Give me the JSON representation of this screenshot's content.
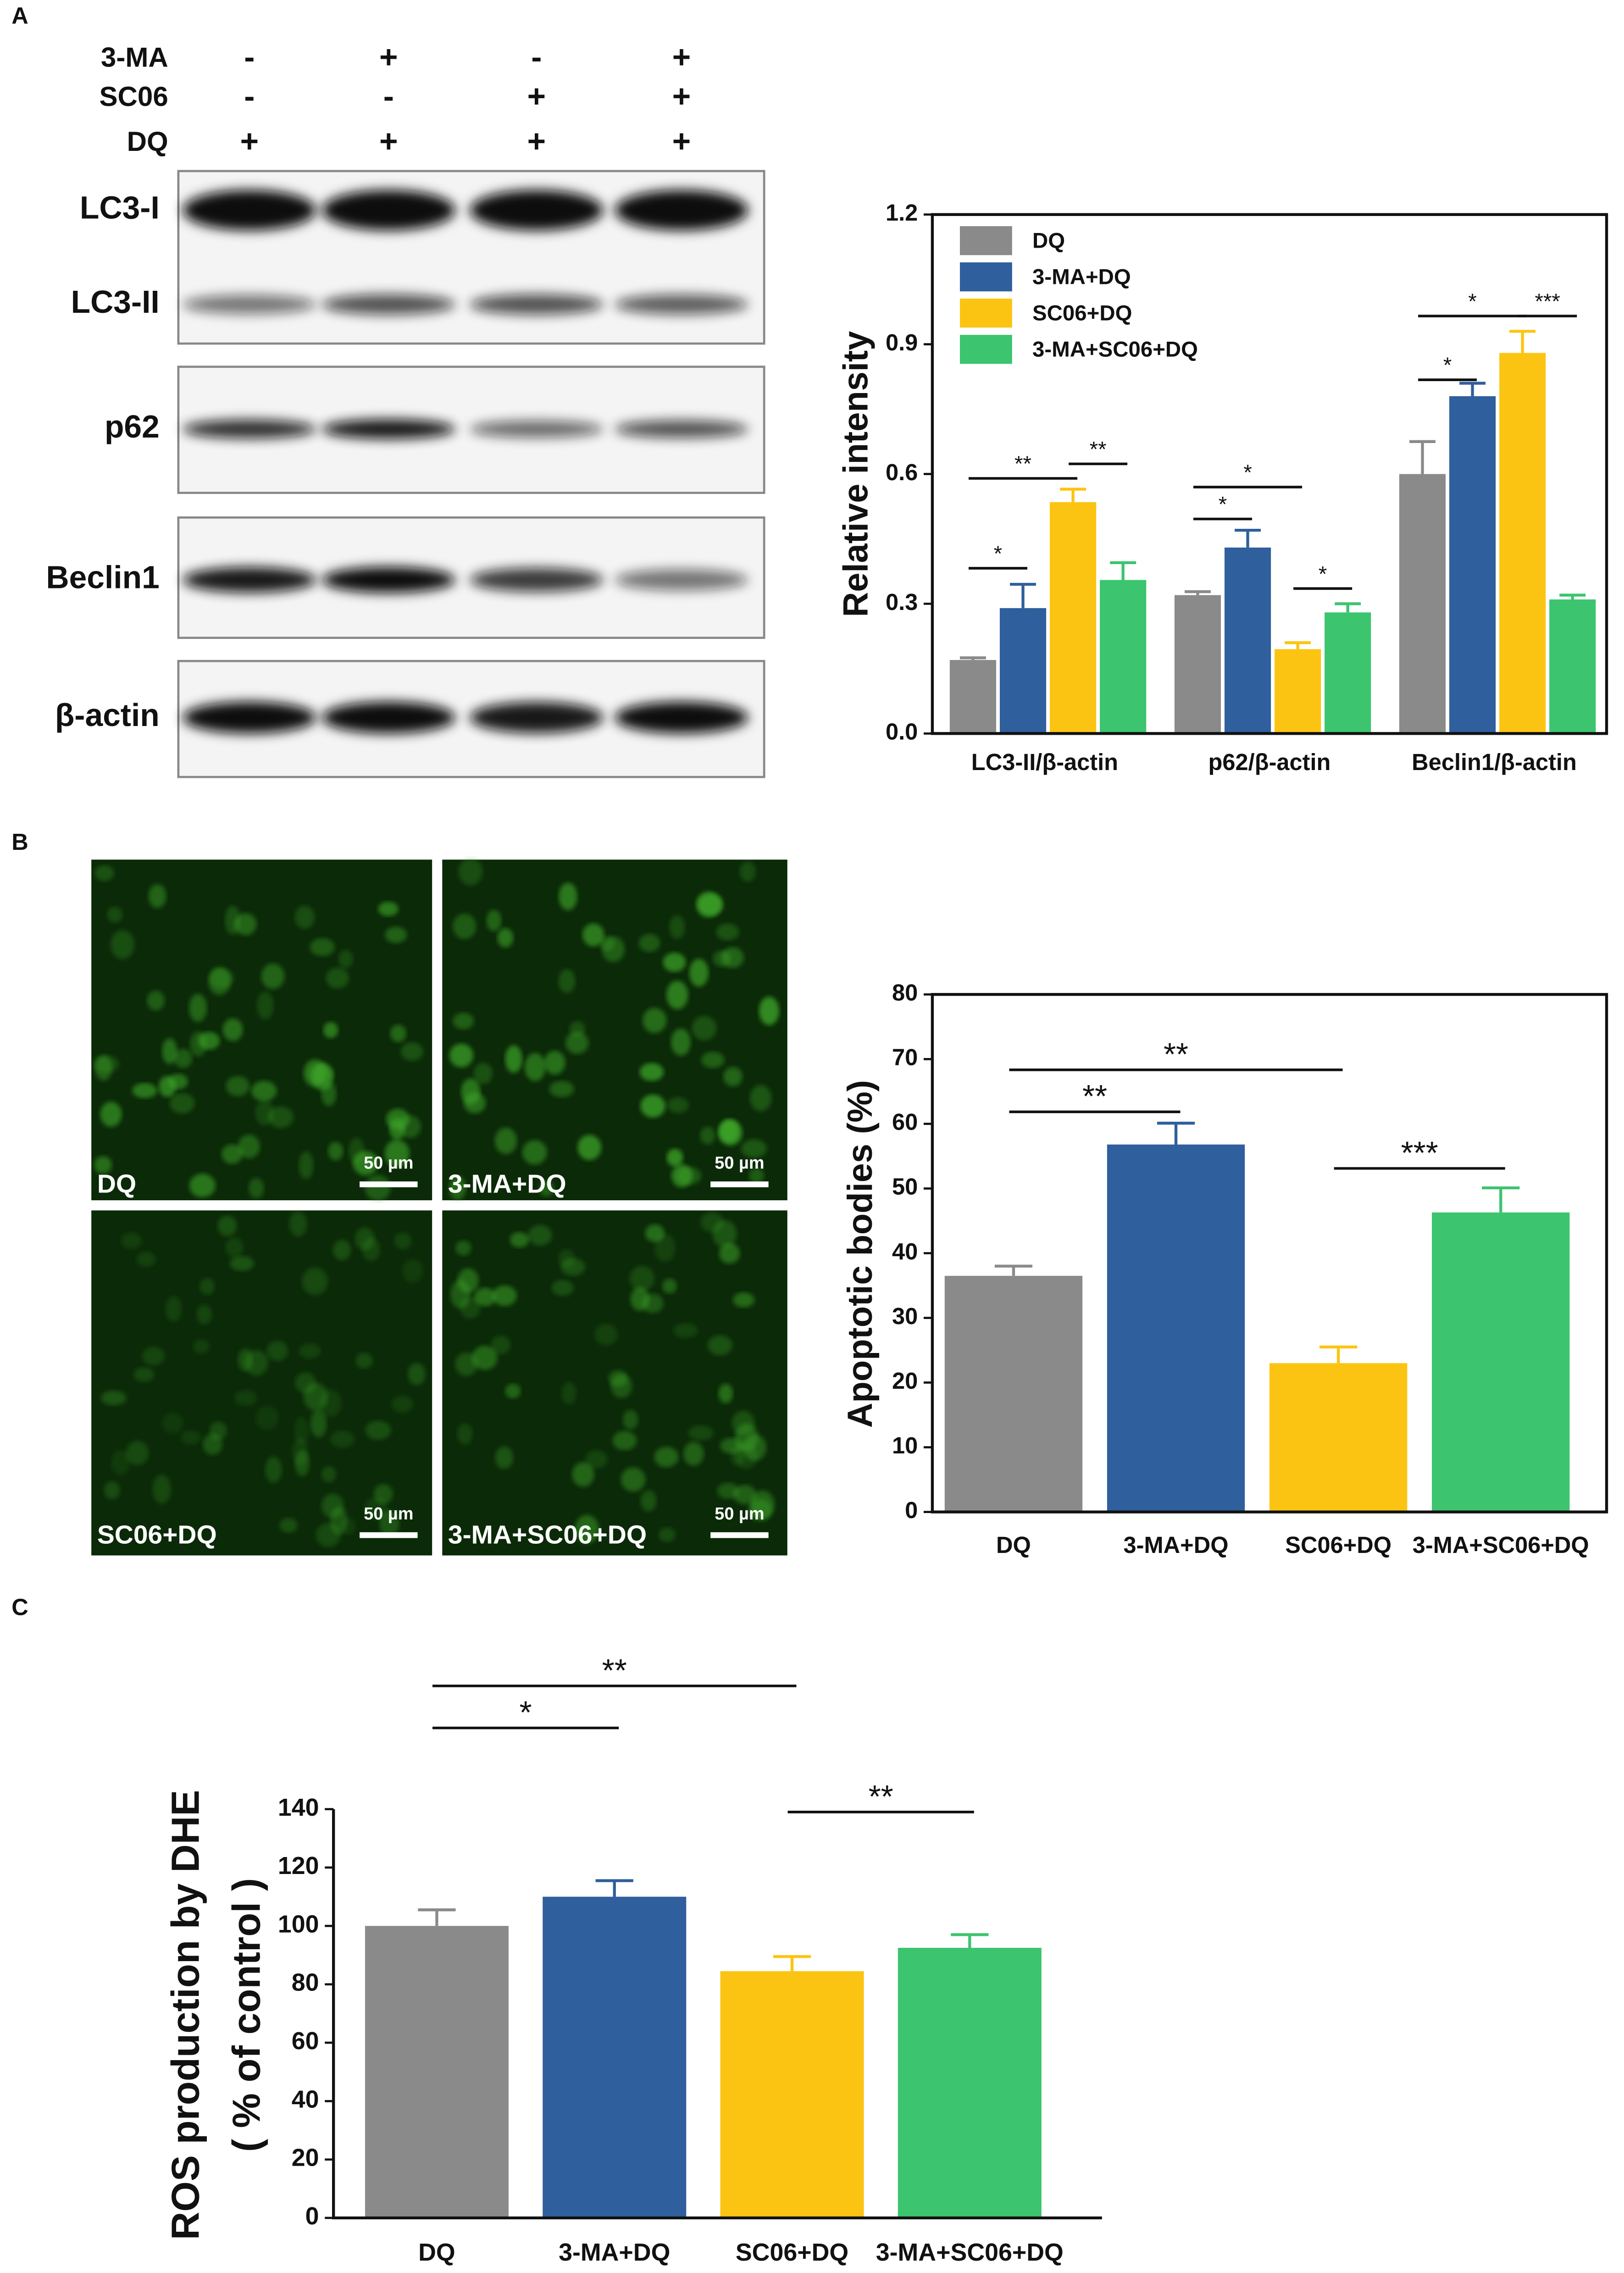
{
  "panel_labels": [
    "A",
    "B",
    "C"
  ],
  "blot": {
    "treatments": [
      {
        "name": "3-MA",
        "signs": [
          "-",
          "+",
          "-",
          "+"
        ]
      },
      {
        "name": "SC06",
        "signs": [
          "-",
          "-",
          "+",
          "+"
        ]
      },
      {
        "name": "DQ",
        "signs": [
          "+",
          "+",
          "+",
          "+"
        ]
      }
    ],
    "panels": [
      {
        "labels": [
          "LC3-I",
          "LC3-II"
        ]
      },
      {
        "labels": [
          "p62"
        ]
      },
      {
        "labels": [
          "Beclin1"
        ]
      },
      {
        "labels": [
          "β-actin"
        ]
      }
    ]
  },
  "micrographs": [
    {
      "label": "DQ",
      "scale": "50 µm"
    },
    {
      "label": "3-MA+DQ",
      "scale": "50 µm"
    },
    {
      "label": "SC06+DQ",
      "scale": "50 µm"
    },
    {
      "label": "3-MA+SC06+DQ",
      "scale": "50 µm"
    }
  ],
  "chart_data": [
    {
      "type": "grouped_bar",
      "ylabel": "Relative intensity",
      "categories": [
        "LC3-II/β-actin",
        "p62/β-actin",
        "Beclin1/β-actin"
      ],
      "series": [
        {
          "name": "DQ",
          "color": "#8a8a8a",
          "values": [
            0.17,
            0.32,
            0.6
          ],
          "errors": [
            0.005,
            0.008,
            0.075
          ]
        },
        {
          "name": "3-MA+DQ",
          "color": "#2f5f9c",
          "values": [
            0.29,
            0.43,
            0.78
          ],
          "errors": [
            0.055,
            0.04,
            0.03
          ]
        },
        {
          "name": "SC06+DQ",
          "color": "#fcc412",
          "values": [
            0.535,
            0.195,
            0.88
          ],
          "errors": [
            0.03,
            0.015,
            0.05
          ]
        },
        {
          "name": "3-MA+SC06+DQ",
          "color": "#3cc46f",
          "values": [
            0.355,
            0.28,
            0.31
          ],
          "errors": [
            0.04,
            0.02,
            0.01
          ]
        }
      ],
      "ylim": [
        0,
        1.2
      ],
      "yticks": [
        {
          "value": 0,
          "label": "0.0"
        },
        0.3,
        0.6,
        0.9,
        1.2
      ],
      "legend": "top-left",
      "annotations": [
        {
          "group": 0,
          "text": "*",
          "between": [
            0,
            1
          ]
        },
        {
          "group": 0,
          "text": "**",
          "between": [
            0,
            2
          ]
        },
        {
          "group": 0,
          "text": "**",
          "between": [
            2,
            3
          ]
        },
        {
          "group": 1,
          "text": "*",
          "between": [
            0,
            1
          ]
        },
        {
          "group": 1,
          "text": "*",
          "between": [
            0,
            2
          ]
        },
        {
          "group": 1,
          "text": "*",
          "between": [
            2,
            3
          ]
        },
        {
          "group": 2,
          "text": "*",
          "between": [
            0,
            1
          ]
        },
        {
          "group": 2,
          "text": "*",
          "between": [
            0,
            2
          ]
        },
        {
          "group": 2,
          "text": "***",
          "between": [
            2,
            3
          ]
        }
      ]
    },
    {
      "type": "bar",
      "ylabel": "Apoptotic bodies (%)",
      "categories": [
        "DQ",
        "3-MA+DQ",
        "SC06+DQ",
        "3-MA+SC06+DQ"
      ],
      "values": [
        36.5,
        56.8,
        23,
        46.3
      ],
      "errors": [
        1.5,
        3.3,
        2.5,
        3.8
      ],
      "colors": [
        "#8a8a8a",
        "#2f5f9c",
        "#fcc412",
        "#3cc46f"
      ],
      "ylim": [
        0,
        80
      ],
      "yticks": [
        0,
        10,
        20,
        30,
        40,
        50,
        60,
        70,
        80
      ],
      "annotations": [
        {
          "text": "**",
          "between": [
            0,
            1
          ]
        },
        {
          "text": "**",
          "between": [
            0,
            2
          ]
        },
        {
          "text": "***",
          "between": [
            2,
            3
          ]
        }
      ]
    },
    {
      "type": "bar",
      "ylabel": [
        "ROS production by DHE",
        "( % of control )"
      ],
      "categories": [
        "DQ",
        "3-MA+DQ",
        "SC06+DQ",
        "3-MA+SC06+DQ"
      ],
      "values": [
        100,
        110,
        84.5,
        92.5
      ],
      "errors": [
        5.5,
        5.5,
        5,
        4.5
      ],
      "colors": [
        "#8a8a8a",
        "#2f5f9c",
        "#fcc412",
        "#3cc46f"
      ],
      "ylim": [
        0,
        140
      ],
      "yticks": [
        0,
        20,
        40,
        60,
        80,
        100,
        120,
        140
      ],
      "annotations": [
        {
          "text": "*",
          "between": [
            0,
            1
          ]
        },
        {
          "text": "**",
          "between": [
            0,
            2
          ]
        },
        {
          "text": "**",
          "between": [
            2,
            3
          ]
        }
      ]
    }
  ]
}
